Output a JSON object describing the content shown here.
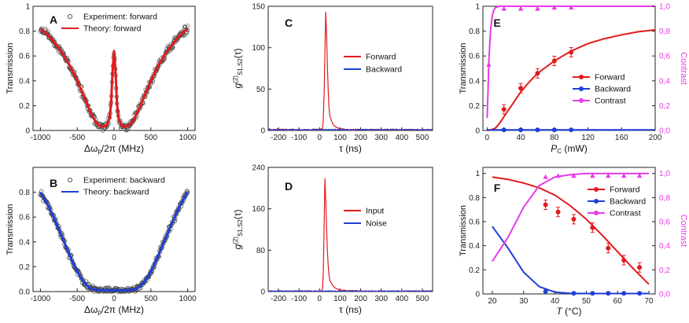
{
  "figure": {
    "panel_letters": [
      "A",
      "B",
      "C",
      "D",
      "E",
      "F"
    ]
  },
  "colors": {
    "red": "#e31a1c",
    "blue": "#1f3fd6",
    "magenta": "#e83ae8",
    "black": "#222222",
    "gray": "#555555"
  },
  "chart_data": [
    {
      "panel": "A",
      "type": "scatter+line",
      "ylabel": "Transmission",
      "xlabel": "Δω_p/2π (MHz)",
      "xlim": [
        -1100,
        1100
      ],
      "ylim": [
        0,
        1
      ],
      "xticks": [
        -1000,
        -500,
        0,
        500,
        1000
      ],
      "yticks": [
        0,
        0.2,
        0.4,
        0.6,
        0.8,
        1.0
      ],
      "ytick_labels": [
        "0",
        "0.2",
        "0.4",
        "0.6",
        "0.8",
        "1"
      ],
      "legend": [
        "Experiment: forward",
        "Theory: forward"
      ],
      "theory": {
        "x": [
          -1000,
          -900,
          -800,
          -700,
          -600,
          -500,
          -450,
          -400,
          -350,
          -300,
          -250,
          -200,
          -150,
          -100,
          -60,
          -40,
          -20,
          0,
          20,
          40,
          60,
          100,
          150,
          200,
          250,
          300,
          350,
          400,
          450,
          500,
          600,
          700,
          800,
          900,
          1000
        ],
        "y": [
          0.82,
          0.77,
          0.7,
          0.62,
          0.52,
          0.4,
          0.33,
          0.26,
          0.19,
          0.12,
          0.07,
          0.04,
          0.03,
          0.04,
          0.1,
          0.22,
          0.48,
          0.64,
          0.48,
          0.22,
          0.1,
          0.04,
          0.03,
          0.04,
          0.07,
          0.12,
          0.19,
          0.26,
          0.33,
          0.4,
          0.52,
          0.62,
          0.7,
          0.77,
          0.82
        ]
      }
    },
    {
      "panel": "B",
      "type": "scatter+line",
      "ylabel": "Transmission",
      "xlabel": "Δω_p/2π (MHz)",
      "xlim": [
        -1100,
        1100
      ],
      "ylim": [
        0,
        1
      ],
      "xticks": [
        -1000,
        -500,
        0,
        500,
        1000
      ],
      "yticks": [
        0,
        0.2,
        0.4,
        0.6,
        0.8
      ],
      "ytick_labels": [
        "0.0",
        "0.2",
        "0.4",
        "0.6",
        "0.8"
      ],
      "legend": [
        "Experiment: backward",
        "Theory: backward"
      ],
      "theory": {
        "x": [
          -1000,
          -900,
          -800,
          -700,
          -600,
          -500,
          -450,
          -400,
          -350,
          -300,
          -200,
          -100,
          0,
          100,
          200,
          300,
          350,
          400,
          450,
          500,
          600,
          700,
          800,
          900,
          1000
        ],
        "y": [
          0.8,
          0.7,
          0.57,
          0.43,
          0.29,
          0.16,
          0.11,
          0.07,
          0.04,
          0.02,
          0.01,
          0.01,
          0.01,
          0.01,
          0.01,
          0.02,
          0.04,
          0.07,
          0.11,
          0.16,
          0.29,
          0.43,
          0.57,
          0.7,
          0.8
        ]
      }
    },
    {
      "panel": "C",
      "type": "line",
      "ylabel_main": "g",
      "ylabel_sup": "(2)",
      "ylabel_sub": "S1,S2",
      "ylabel_tail": "(τ)",
      "xlabel": "τ (ns)",
      "xlim": [
        -250,
        550
      ],
      "ylim": [
        0,
        150
      ],
      "xticks": [
        -200,
        -100,
        0,
        100,
        200,
        300,
        400,
        500
      ],
      "yticks": [
        0,
        50,
        100,
        150
      ],
      "legend": [
        "Forward",
        "Backward"
      ],
      "series": [
        {
          "name": "Forward",
          "color": "red",
          "x": [
            -250,
            0,
            15,
            20,
            25,
            30,
            35,
            40,
            45,
            50,
            60,
            70,
            80,
            100,
            130,
            200,
            550
          ],
          "y": [
            1,
            1,
            2,
            20,
            80,
            143,
            110,
            60,
            30,
            18,
            10,
            6,
            4,
            2,
            1,
            1,
            1
          ]
        },
        {
          "name": "Backward",
          "color": "blue",
          "x": [
            -250,
            0,
            25,
            30,
            35,
            550
          ],
          "y": [
            1,
            1,
            1,
            1.5,
            1,
            1
          ]
        }
      ]
    },
    {
      "panel": "D",
      "type": "line",
      "ylabel_main": "g",
      "ylabel_sup": "(2)",
      "ylabel_sub": "S1,S2",
      "ylabel_tail": "(τ)",
      "xlabel": "τ (ns)",
      "xlim": [
        -250,
        550
      ],
      "ylim": [
        0,
        240
      ],
      "xticks": [
        -200,
        -100,
        0,
        100,
        200,
        300,
        400,
        500
      ],
      "yticks": [
        0,
        80,
        160,
        240
      ],
      "legend": [
        "Input",
        "Noise"
      ],
      "series": [
        {
          "name": "Input",
          "color": "red",
          "x": [
            -250,
            0,
            15,
            20,
            25,
            30,
            35,
            40,
            45,
            50,
            60,
            70,
            80,
            100,
            130,
            200,
            550
          ],
          "y": [
            1,
            1,
            3,
            60,
            228,
            180,
            110,
            60,
            35,
            22,
            14,
            9,
            6,
            3,
            2,
            1,
            1
          ]
        },
        {
          "name": "Noise",
          "color": "blue",
          "x": [
            -250,
            550
          ],
          "y": [
            1,
            1
          ]
        }
      ]
    },
    {
      "panel": "E",
      "type": "scatter+line",
      "ylabel": "Transmission",
      "ylabel_right": "Contrast",
      "xlabel_main": "P",
      "xlabel_sub": "C",
      "xlabel_tail": " (mW)",
      "xlim": [
        -5,
        200
      ],
      "ylim": [
        0,
        1
      ],
      "xticks": [
        0,
        40,
        80,
        120,
        160,
        200
      ],
      "yticks": [
        0,
        0.2,
        0.4,
        0.6,
        0.8,
        1.0
      ],
      "ytick_labels": [
        "0",
        "0.2",
        "0.4",
        "0.6",
        "0.8",
        "1"
      ],
      "yticks_right": [
        "0,0",
        "0,2",
        "0,4",
        "0,6",
        "0,8",
        "1,0"
      ],
      "legend": [
        "Forward",
        "Backward",
        "Contrast"
      ],
      "series": [
        {
          "name": "Forward",
          "color": "red",
          "points": {
            "x": [
              20,
              40,
              60,
              80,
              100
            ],
            "y": [
              0.17,
              0.34,
              0.46,
              0.56,
              0.63
            ]
          },
          "line": {
            "x": [
              0,
              5,
              10,
              15,
              20,
              30,
              40,
              50,
              60,
              80,
              100,
              120,
              140,
              160,
              180,
              200
            ],
            "y": [
              0,
              0.005,
              0.02,
              0.06,
              0.11,
              0.21,
              0.31,
              0.39,
              0.46,
              0.56,
              0.64,
              0.7,
              0.74,
              0.77,
              0.795,
              0.81
            ]
          }
        },
        {
          "name": "Backward",
          "color": "blue",
          "points": {
            "x": [
              20,
              40,
              60,
              80,
              100
            ],
            "y": [
              0.005,
              0.005,
              0.005,
              0.005,
              0.005
            ]
          },
          "line": {
            "x": [
              0,
              200
            ],
            "y": [
              0.005,
              0.005
            ]
          }
        },
        {
          "name": "Contrast",
          "color": "magenta",
          "points": {
            "x": [
              2,
              20,
              40,
              60,
              80,
              100
            ],
            "y": [
              0.53,
              0.98,
              0.98,
              0.98,
              0.99,
              0.99
            ]
          },
          "line": {
            "x": [
              0,
              1,
              2,
              4,
              6,
              8,
              10,
              15,
              20,
              200
            ],
            "y": [
              0.1,
              0.3,
              0.55,
              0.8,
              0.92,
              0.97,
              0.99,
              1.0,
              1.0,
              1.0
            ]
          }
        }
      ]
    },
    {
      "panel": "F",
      "type": "scatter+line",
      "ylabel": "Transmission",
      "ylabel_right": "Contrast",
      "xlabel_main": "T",
      "xlabel_tail": " (°C)",
      "xlim": [
        17,
        72
      ],
      "ylim": [
        0,
        1.05
      ],
      "xticks": [
        20,
        30,
        40,
        50,
        60,
        70
      ],
      "yticks": [
        0,
        0.2,
        0.4,
        0.6,
        0.8,
        1.0
      ],
      "ytick_labels": [
        "0",
        "0.2",
        "0.4",
        "0.6",
        "0.8",
        "1"
      ],
      "yticks_right": [
        "0,0",
        "0,2",
        "0,4",
        "0,6",
        "0,8",
        "1,0"
      ],
      "legend": [
        "Forward",
        "Backward",
        "Contrast"
      ],
      "series": [
        {
          "name": "Forward",
          "color": "red",
          "points": {
            "x": [
              37,
              41,
              46,
              52,
              57,
              62,
              67
            ],
            "y": [
              0.74,
              0.68,
              0.62,
              0.55,
              0.38,
              0.28,
              0.22
            ]
          },
          "line": {
            "x": [
              20,
              25,
              30,
              35,
              40,
              45,
              50,
              55,
              60,
              65,
              70
            ],
            "y": [
              0.97,
              0.95,
              0.92,
              0.88,
              0.82,
              0.73,
              0.62,
              0.49,
              0.35,
              0.21,
              0.08
            ]
          }
        },
        {
          "name": "Backward",
          "color": "blue",
          "points": {
            "x": [
              37,
              46,
              52,
              57,
              62,
              67
            ],
            "y": [
              0.02,
              0.005,
              0.005,
              0.005,
              0.005,
              0.005
            ]
          },
          "line": {
            "x": [
              20,
              25,
              30,
              35,
              40,
              45,
              50,
              70
            ],
            "y": [
              0.56,
              0.38,
              0.18,
              0.06,
              0.015,
              0.005,
              0.003,
              0.003
            ]
          }
        },
        {
          "name": "Contrast",
          "color": "magenta",
          "points": {
            "x": [
              37,
              41,
              46,
              52,
              57,
              62,
              67
            ],
            "y": [
              0.97,
              0.98,
              0.98,
              0.98,
              0.98,
              0.98,
              0.98
            ]
          },
          "line": {
            "x": [
              20,
              25,
              30,
              35,
              40,
              45,
              50,
              70
            ],
            "y": [
              0.27,
              0.47,
              0.72,
              0.9,
              0.97,
              0.99,
              1.0,
              1.0
            ]
          }
        }
      ]
    }
  ]
}
